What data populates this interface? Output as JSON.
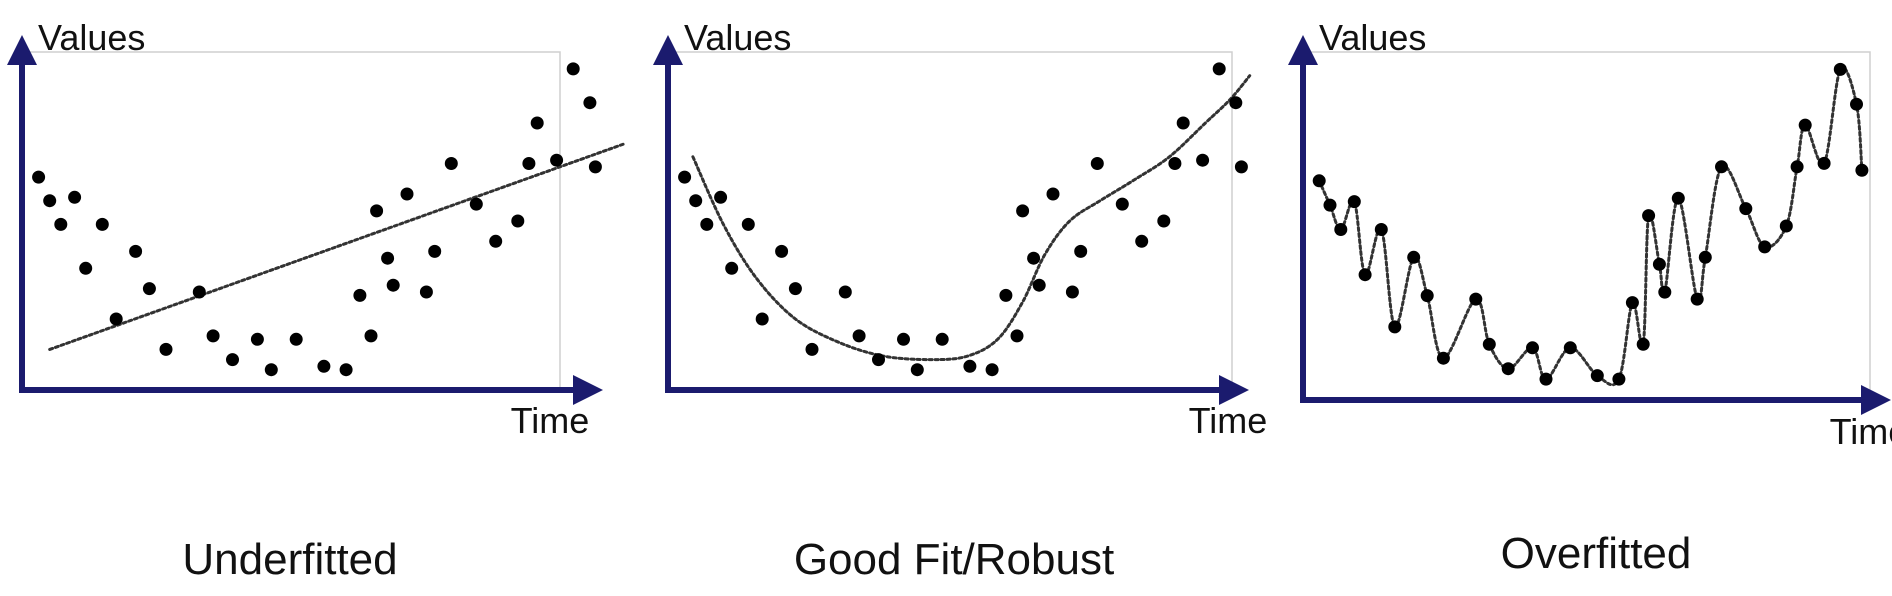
{
  "colors": {
    "axis": "#1b1b6e",
    "frame": "#cfcfcf",
    "point": "#000000",
    "fit": "#333333"
  },
  "chart_data": [
    {
      "type": "scatter",
      "caption": "Underfitted",
      "xlabel": "Time",
      "ylabel": "Values",
      "xlim": [
        0,
        20
      ],
      "ylim": [
        0,
        10
      ],
      "grid": false,
      "fit_type": "linear",
      "points": [
        [
          0.6,
          6.3
        ],
        [
          1.0,
          5.6
        ],
        [
          1.4,
          4.9
        ],
        [
          1.9,
          5.7
        ],
        [
          2.3,
          3.6
        ],
        [
          2.9,
          4.9
        ],
        [
          3.4,
          2.1
        ],
        [
          4.1,
          4.1
        ],
        [
          4.6,
          3.0
        ],
        [
          5.2,
          1.2
        ],
        [
          6.4,
          2.9
        ],
        [
          6.9,
          1.6
        ],
        [
          7.6,
          0.9
        ],
        [
          8.5,
          1.5
        ],
        [
          9.0,
          0.6
        ],
        [
          9.9,
          1.5
        ],
        [
          10.9,
          0.7
        ],
        [
          11.7,
          0.6
        ],
        [
          12.2,
          2.8
        ],
        [
          12.6,
          1.6
        ],
        [
          12.8,
          5.3
        ],
        [
          13.2,
          3.9
        ],
        [
          13.4,
          3.1
        ],
        [
          13.9,
          5.8
        ],
        [
          14.6,
          2.9
        ],
        [
          14.9,
          4.1
        ],
        [
          15.5,
          6.7
        ],
        [
          16.4,
          5.5
        ],
        [
          17.1,
          4.4
        ],
        [
          17.9,
          5.0
        ],
        [
          18.3,
          6.7
        ],
        [
          18.6,
          7.9
        ],
        [
          19.3,
          6.8
        ],
        [
          19.9,
          9.5
        ],
        [
          20.5,
          8.5
        ],
        [
          20.7,
          6.6
        ]
      ],
      "fit": [
        [
          1.0,
          1.2
        ],
        [
          21.8,
          7.3
        ]
      ]
    },
    {
      "type": "scatter",
      "caption": "Good Fit/Robust",
      "xlabel": "Time",
      "ylabel": "Values",
      "xlim": [
        0,
        20
      ],
      "ylim": [
        0,
        10
      ],
      "grid": false,
      "fit_type": "smooth",
      "points": [
        [
          0.6,
          6.3
        ],
        [
          1.0,
          5.6
        ],
        [
          1.4,
          4.9
        ],
        [
          1.9,
          5.7
        ],
        [
          2.3,
          3.6
        ],
        [
          2.9,
          4.9
        ],
        [
          3.4,
          2.1
        ],
        [
          4.1,
          4.1
        ],
        [
          4.6,
          3.0
        ],
        [
          5.2,
          1.2
        ],
        [
          6.4,
          2.9
        ],
        [
          6.9,
          1.6
        ],
        [
          7.6,
          0.9
        ],
        [
          8.5,
          1.5
        ],
        [
          9.0,
          0.6
        ],
        [
          9.9,
          1.5
        ],
        [
          10.9,
          0.7
        ],
        [
          11.7,
          0.6
        ],
        [
          12.2,
          2.8
        ],
        [
          12.6,
          1.6
        ],
        [
          12.8,
          5.3
        ],
        [
          13.2,
          3.9
        ],
        [
          13.4,
          3.1
        ],
        [
          13.9,
          5.8
        ],
        [
          14.6,
          2.9
        ],
        [
          14.9,
          4.1
        ],
        [
          15.5,
          6.7
        ],
        [
          16.4,
          5.5
        ],
        [
          17.1,
          4.4
        ],
        [
          17.9,
          5.0
        ],
        [
          18.3,
          6.7
        ],
        [
          18.6,
          7.9
        ],
        [
          19.3,
          6.8
        ],
        [
          19.9,
          9.5
        ],
        [
          20.5,
          8.5
        ],
        [
          20.7,
          6.6
        ]
      ],
      "fit": [
        [
          0.9,
          6.9
        ],
        [
          2.0,
          4.9
        ],
        [
          3.2,
          3.3
        ],
        [
          4.6,
          2.1
        ],
        [
          6.2,
          1.4
        ],
        [
          7.8,
          1.0
        ],
        [
          9.5,
          0.9
        ],
        [
          10.8,
          1.0
        ],
        [
          11.9,
          1.5
        ],
        [
          12.8,
          2.6
        ],
        [
          13.6,
          4.0
        ],
        [
          14.5,
          5.0
        ],
        [
          15.6,
          5.6
        ],
        [
          16.8,
          6.2
        ],
        [
          18.1,
          6.9
        ],
        [
          19.4,
          7.9
        ],
        [
          20.3,
          8.6
        ],
        [
          21.0,
          9.3
        ]
      ]
    },
    {
      "type": "scatter",
      "caption": "Overfitted",
      "xlabel": "Time",
      "ylabel": "Values",
      "xlim": [
        0,
        20
      ],
      "ylim": [
        0,
        10
      ],
      "grid": false,
      "fit_type": "interpolating",
      "points": [
        [
          0.6,
          6.3
        ],
        [
          1.0,
          5.6
        ],
        [
          1.4,
          4.9
        ],
        [
          1.9,
          5.7
        ],
        [
          2.3,
          3.6
        ],
        [
          2.9,
          4.9
        ],
        [
          3.4,
          2.1
        ],
        [
          4.1,
          4.1
        ],
        [
          4.6,
          3.0
        ],
        [
          5.2,
          1.2
        ],
        [
          6.4,
          2.9
        ],
        [
          6.9,
          1.6
        ],
        [
          7.6,
          0.9
        ],
        [
          8.5,
          1.5
        ],
        [
          9.0,
          0.6
        ],
        [
          9.9,
          1.5
        ],
        [
          10.9,
          0.7
        ],
        [
          11.7,
          0.6
        ],
        [
          12.2,
          2.8
        ],
        [
          12.6,
          1.6
        ],
        [
          12.8,
          5.3
        ],
        [
          13.2,
          3.9
        ],
        [
          13.4,
          3.1
        ],
        [
          13.9,
          5.8
        ],
        [
          14.6,
          2.9
        ],
        [
          14.9,
          4.1
        ],
        [
          15.5,
          6.7
        ],
        [
          16.4,
          5.5
        ],
        [
          17.1,
          4.4
        ],
        [
          17.9,
          5.0
        ],
        [
          18.3,
          6.7
        ],
        [
          18.6,
          7.9
        ],
        [
          19.3,
          6.8
        ],
        [
          19.9,
          9.5
        ],
        [
          20.5,
          8.5
        ],
        [
          20.7,
          6.6
        ]
      ]
    }
  ]
}
